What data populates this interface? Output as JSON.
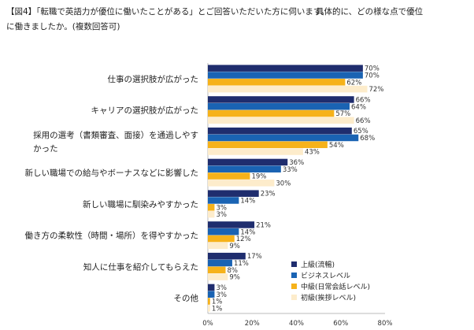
{
  "header": {
    "line1": "【図4】「転職で英語力が優位に働いたことがある」とご回答いただいた方に伺います。",
    "line1b": "具体的に、どの様な点で優位",
    "line2": "に働きましたか。(複数回答可)"
  },
  "colors": {
    "advanced": "#1f2d6e",
    "business": "#1a63b3",
    "daily": "#f6b21a",
    "beginner": "#fdeccb",
    "axis": "#bbbbbb"
  },
  "chart_data": {
    "type": "bar",
    "orientation": "horizontal",
    "categories": [
      [
        "仕事の選択肢が広がった"
      ],
      [
        "キャリアの選択肢が広がった"
      ],
      [
        "採用の選考（書類審査、面接）を通過しやす",
        "かった"
      ],
      [
        "新しい職場での給与やボーナスなどに影響した"
      ],
      [
        "新しい職場に馴染みやすかった"
      ],
      [
        "働き方の柔軟性（時間・場所）を得やすかった"
      ],
      [
        "知人に仕事を紹介してもらえた"
      ],
      [
        "その他"
      ]
    ],
    "series": [
      {
        "name": "上級(流暢)",
        "values": [
          70,
          66,
          65,
          36,
          23,
          21,
          17,
          3
        ]
      },
      {
        "name": "ビジネスレベル",
        "values": [
          70,
          64,
          68,
          33,
          14,
          14,
          11,
          3
        ]
      },
      {
        "name": "中級(日常会話レベル)",
        "values": [
          62,
          57,
          54,
          19,
          3,
          12,
          8,
          1
        ]
      },
      {
        "name": "初級(挨拶レベル)",
        "values": [
          72,
          66,
          43,
          30,
          3,
          9,
          9,
          1
        ]
      }
    ],
    "value_suffix": "%",
    "xlim": [
      0,
      80
    ],
    "xticks": [
      "0%",
      "20%",
      "40%",
      "60%",
      "80%"
    ],
    "legend_position": "bottom-right"
  }
}
